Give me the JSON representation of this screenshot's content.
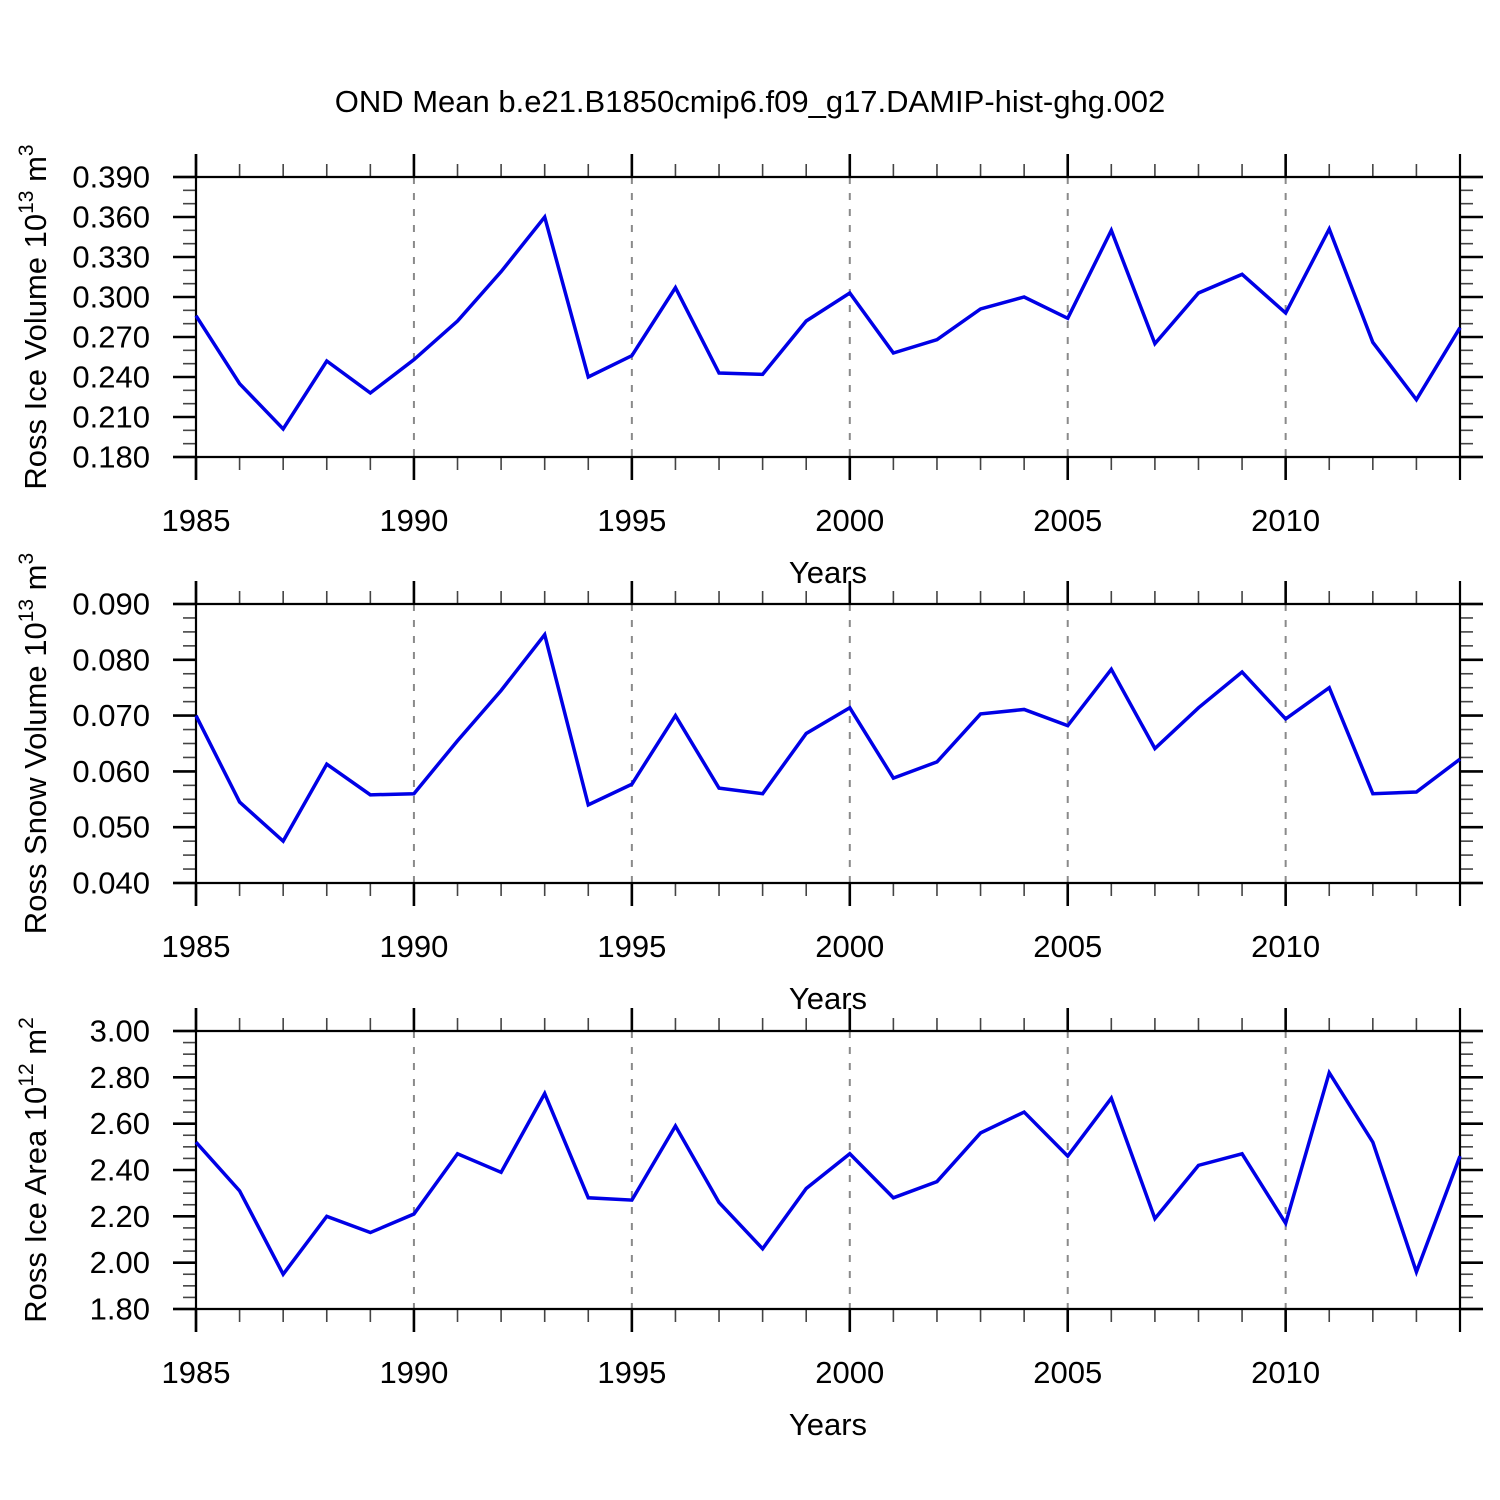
{
  "title": "OND Mean b.e21.B1850cmip6.f09_g17.DAMIP-hist-ghg.002",
  "colors": {
    "line": "#0000e6",
    "grid": "#8a8a8a",
    "axis": "#000000"
  },
  "chart_data": [
    {
      "type": "line",
      "panel": 1,
      "ylabel": "Ross Ice Volume 10^13 m^3",
      "ylabel_parts": {
        "prefix": "Ross Ice Volume 10",
        "power": "13",
        "unit": "m",
        "unit_power": "3"
      },
      "xlabel": "Years",
      "xlim": [
        1985,
        2014
      ],
      "xmajor_step": 5,
      "xminor_step": 1,
      "xtick_labels": [
        "1985",
        "1990",
        "1995",
        "2000",
        "2005",
        "2010"
      ],
      "ylim": [
        0.18,
        0.39
      ],
      "ymajor_step": 0.03,
      "yminor_step": 0.01,
      "ytick_labels": [
        "0.390",
        "0.360",
        "0.330",
        "0.300",
        "0.270",
        "0.240",
        "0.210",
        "0.180"
      ],
      "grid": "vertical-dashed-at-major-x",
      "legend": "none",
      "x": [
        1985,
        1986,
        1987,
        1988,
        1989,
        1990,
        1991,
        1992,
        1993,
        1994,
        1995,
        1996,
        1997,
        1998,
        1999,
        2000,
        2001,
        2002,
        2003,
        2004,
        2005,
        2006,
        2007,
        2008,
        2009,
        2010,
        2011,
        2012,
        2013,
        2014
      ],
      "values": [
        0.286,
        0.235,
        0.201,
        0.252,
        0.228,
        0.253,
        0.282,
        0.319,
        0.36,
        0.24,
        0.256,
        0.307,
        0.243,
        0.242,
        0.282,
        0.303,
        0.258,
        0.268,
        0.291,
        0.3,
        0.284,
        0.35,
        0.265,
        0.303,
        0.317,
        0.288,
        0.351,
        0.266,
        0.223,
        0.277
      ]
    },
    {
      "type": "line",
      "panel": 2,
      "ylabel": "Ross Snow Volume 10^13 m^3",
      "ylabel_parts": {
        "prefix": "Ross Snow Volume 10",
        "power": "13",
        "unit": "m",
        "unit_power": "3"
      },
      "xlabel": "Years",
      "xlim": [
        1985,
        2014
      ],
      "xmajor_step": 5,
      "xminor_step": 1,
      "xtick_labels": [
        "1985",
        "1990",
        "1995",
        "2000",
        "2005",
        "2010"
      ],
      "ylim": [
        0.04,
        0.09
      ],
      "ymajor_step": 0.01,
      "yminor_step": 0.0025,
      "ytick_labels": [
        "0.090",
        "0.080",
        "0.070",
        "0.060",
        "0.050",
        "0.040"
      ],
      "grid": "vertical-dashed-at-major-x",
      "legend": "none",
      "x": [
        1985,
        1986,
        1987,
        1988,
        1989,
        1990,
        1991,
        1992,
        1993,
        1994,
        1995,
        1996,
        1997,
        1998,
        1999,
        2000,
        2001,
        2002,
        2003,
        2004,
        2005,
        2006,
        2007,
        2008,
        2009,
        2010,
        2011,
        2012,
        2013,
        2014
      ],
      "values": [
        0.07,
        0.0545,
        0.0475,
        0.0613,
        0.0558,
        0.056,
        0.0655,
        0.0745,
        0.0845,
        0.054,
        0.0577,
        0.07,
        0.057,
        0.056,
        0.0668,
        0.0714,
        0.0588,
        0.0617,
        0.0703,
        0.0711,
        0.0682,
        0.0783,
        0.0641,
        0.0714,
        0.0778,
        0.0694,
        0.075,
        0.056,
        0.0563,
        0.0622
      ]
    },
    {
      "type": "line",
      "panel": 3,
      "ylabel": "Ross Ice Area 10^12 m^2",
      "ylabel_parts": {
        "prefix": "Ross Ice Area 10",
        "power": "12",
        "unit": "m",
        "unit_power": "2"
      },
      "xlabel": "Years",
      "xlim": [
        1985,
        2014
      ],
      "xmajor_step": 5,
      "xminor_step": 1,
      "xtick_labels": [
        "1985",
        "1990",
        "1995",
        "2000",
        "2005",
        "2010"
      ],
      "ylim": [
        1.8,
        3.0
      ],
      "ymajor_step": 0.2,
      "yminor_step": 0.05,
      "ytick_labels": [
        "3.00",
        "2.80",
        "2.60",
        "2.40",
        "2.20",
        "2.00",
        "1.80"
      ],
      "grid": "vertical-dashed-at-major-x",
      "legend": "none",
      "x": [
        1985,
        1986,
        1987,
        1988,
        1989,
        1990,
        1991,
        1992,
        1993,
        1994,
        1995,
        1996,
        1997,
        1998,
        1999,
        2000,
        2001,
        2002,
        2003,
        2004,
        2005,
        2006,
        2007,
        2008,
        2009,
        2010,
        2011,
        2012,
        2013,
        2014
      ],
      "values": [
        2.52,
        2.31,
        1.95,
        2.2,
        2.13,
        2.21,
        2.47,
        2.39,
        2.73,
        2.28,
        2.27,
        2.59,
        2.26,
        2.06,
        2.32,
        2.47,
        2.28,
        2.35,
        2.56,
        2.65,
        2.46,
        2.71,
        2.19,
        2.42,
        2.47,
        2.17,
        2.82,
        2.52,
        1.96,
        2.46
      ]
    }
  ]
}
